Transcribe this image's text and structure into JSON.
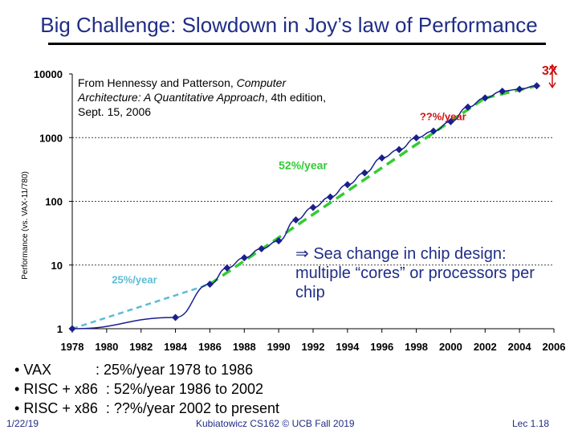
{
  "slide": {
    "title": "Big Challenge: Slowdown in Joy’s law of Performance",
    "source_line1_pre": "From Hennessy and Patterson, ",
    "source_line1_italic": "Computer",
    "source_line2_italic": "Architecture: A Quantitative Approach",
    "source_line2_post": ", 4th edition,",
    "source_line3": "Sept. 15, 2006",
    "callout_arrow": "⇒",
    "callout_text": " Sea change in chip design: multiple “cores” or processors per chip",
    "bullets": [
      {
        "marker": "• ",
        "label": "VAX           ",
        "rest": ": 25%/year 1978 to 1986"
      },
      {
        "marker": "• ",
        "label": "RISC + x86",
        "rest": "  : 52%/year 1986 to 2002"
      },
      {
        "marker": "• ",
        "label": "RISC + x86",
        "rest": "  : ??%/year 2002 to present"
      }
    ],
    "footer_date": "1/22/19",
    "footer_course": "Kubiatowicz CS162 © UCB Fall 2019",
    "footer_lecture": "Lec 1.18"
  },
  "colors": {
    "title": "#1f2d86",
    "series": "#1a1f8c",
    "trend_52": "#33cc33",
    "trend_25": "#5bbcd6",
    "trend_unk": "#cc1111"
  },
  "chart_data": {
    "type": "line",
    "title": "",
    "xlabel": "",
    "ylabel": "Performance (vs. VAX-11/780)",
    "yscale": "log",
    "xlim": [
      1978,
      2006
    ],
    "ylim": [
      1,
      10000
    ],
    "x_ticks": [
      "1978",
      "1980",
      "1982",
      "1984",
      "1986",
      "1988",
      "1990",
      "1992",
      "1994",
      "1996",
      "1998",
      "2000",
      "2002",
      "2004",
      "2006"
    ],
    "y_ticks": [
      "1",
      "10",
      "100",
      "1000",
      "10000"
    ],
    "series": [
      {
        "name": "Performance",
        "x": [
          1978,
          1984,
          1986,
          1987,
          1988,
          1989,
          1990,
          1991,
          1992,
          1993,
          1994,
          1995,
          1996,
          1997,
          1998,
          1999,
          2000,
          2001,
          2002,
          2003,
          2004,
          2005
        ],
        "y": [
          1,
          1.5,
          5,
          9,
          13,
          18,
          24,
          51,
          80,
          117,
          183,
          280,
          481,
          649,
          993,
          1267,
          1779,
          3016,
          4195,
          5364,
          5764,
          6505
        ]
      }
    ],
    "trend_lines": [
      {
        "label": "25%/year",
        "x": [
          1978,
          1986
        ],
        "y": [
          1,
          5
        ]
      },
      {
        "label": "52%/year",
        "x": [
          1986,
          2002
        ],
        "y": [
          5,
          4195
        ]
      },
      {
        "label": "??%/year",
        "x": [
          2002,
          2005
        ],
        "y": [
          4195,
          6505
        ]
      }
    ],
    "annotations": [
      {
        "text": "25%/year"
      },
      {
        "text": "52%/year"
      },
      {
        "text": "??%/year"
      },
      {
        "text": "3X"
      }
    ]
  }
}
